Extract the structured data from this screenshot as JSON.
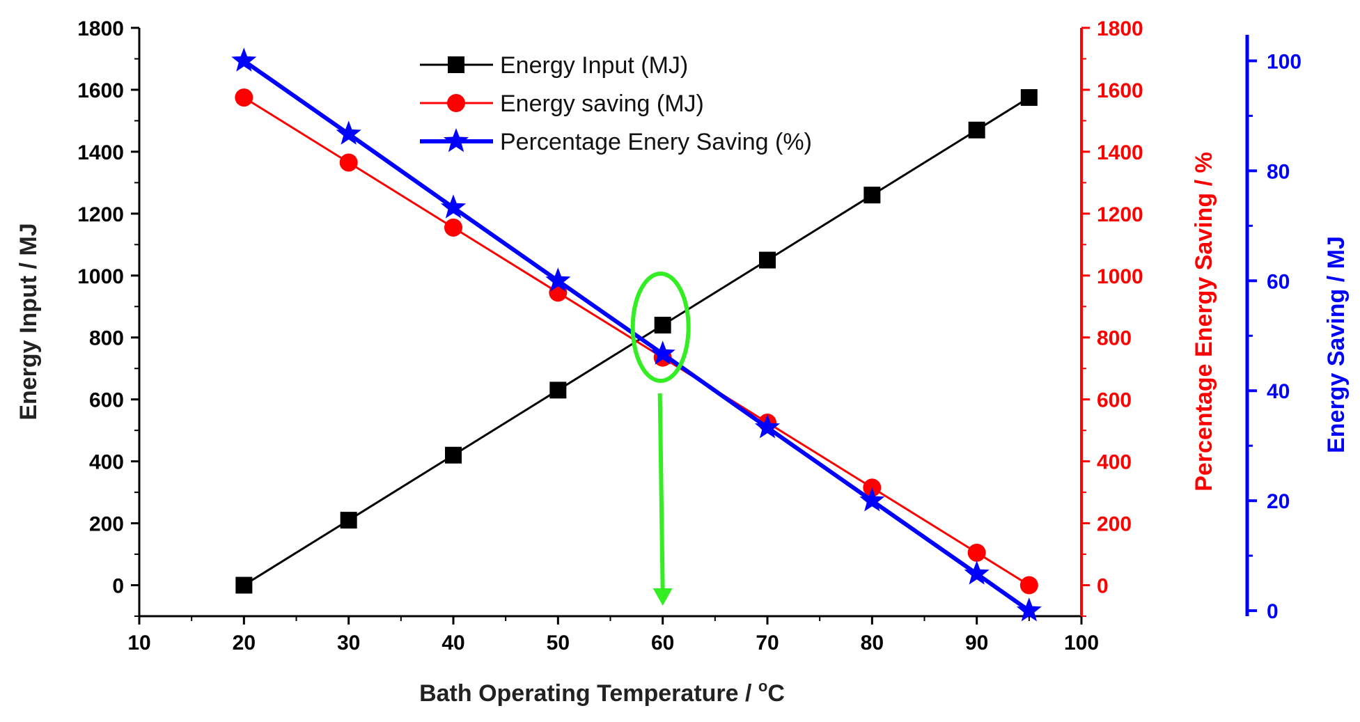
{
  "chart_data": {
    "type": "line",
    "x_axis": {
      "label": "Bath Operating Temperature / ",
      "label_unit_super": "o",
      "label_unit": "C",
      "range": [
        10,
        100
      ],
      "ticks": [
        "10",
        "20",
        "30",
        "40",
        "50",
        "60",
        "70",
        "80",
        "90",
        "100"
      ]
    },
    "y_axis_left": {
      "label": "Energy Input / MJ",
      "range": [
        -100,
        1800
      ],
      "ticks": [
        "0",
        "200",
        "400",
        "600",
        "800",
        "1000",
        "1200",
        "1400",
        "1600",
        "1800"
      ]
    },
    "y_axis_right_1": {
      "label": "Percentage Energy Saving / %",
      "range": [
        -100,
        1800
      ],
      "ticks": [
        "0",
        "200",
        "400",
        "600",
        "800",
        "1000",
        "1200",
        "1400",
        "1600",
        "1800"
      ]
    },
    "y_axis_right_2": {
      "label": "Energy Saving / MJ",
      "range": [
        -1,
        106
      ],
      "ticks": [
        "0",
        "20",
        "40",
        "60",
        "80",
        "100"
      ]
    },
    "x": [
      20,
      30,
      40,
      50,
      60,
      70,
      80,
      90,
      95
    ],
    "series": [
      {
        "name": "Energy Input (MJ)",
        "axis": "left",
        "marker": "square",
        "values": [
          0,
          210,
          420,
          630,
          840,
          1050,
          1260,
          1470,
          1575
        ]
      },
      {
        "name": "Energy saving (MJ)",
        "axis": "right_1",
        "marker": "circle",
        "values": [
          1575,
          1365,
          1155,
          945,
          735,
          525,
          315,
          105,
          0
        ]
      },
      {
        "name": "Percentage Enery Saving (%)",
        "axis": "right_2",
        "marker": "star",
        "values": [
          100,
          86.7,
          73.3,
          60,
          46.7,
          33.3,
          20,
          6.7,
          0
        ]
      }
    ],
    "annotation": {
      "type": "ellipse-and-arrow",
      "x": 60,
      "note": "green ellipse marking the crossover at 60 °C with arrow pointing down to the x-axis"
    },
    "colors": {
      "energy_input": "#000000",
      "energy_saving": "#ff0000",
      "percentage_saving": "#0000ff",
      "annotation": "#33ee22"
    }
  }
}
